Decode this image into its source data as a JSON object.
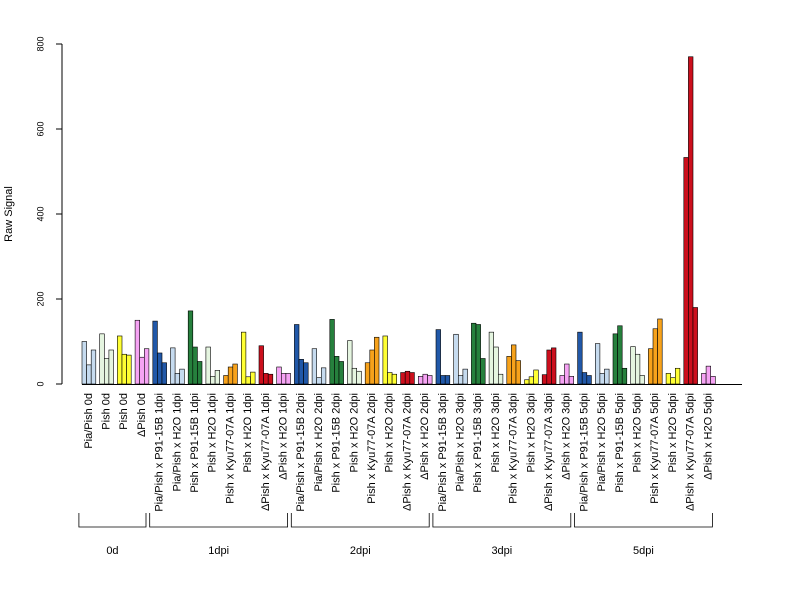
{
  "chart_data": {
    "type": "bar",
    "title": "",
    "xlabel": "",
    "ylabel": "Raw Signal",
    "ylim": [
      0,
      800
    ],
    "yticks": [
      0,
      200,
      400,
      600,
      800
    ],
    "grid": false,
    "legend": "none",
    "colors": {
      "lightblue": "#c6dbef",
      "lightgreen": "#e5f5e0",
      "yellow": "#ffff33",
      "pink": "#f6a3f4",
      "darkblue": "#2158a8",
      "darkgreen": "#26803d",
      "orange": "#f7a21b",
      "red": "#cc0f1d",
      "stroke": "#000000"
    },
    "categories": [
      {
        "label": "Pia/Pish 0d",
        "color": "lightblue",
        "values": [
          100,
          45,
          80
        ]
      },
      {
        "label": "Pish 0d",
        "color": "lightgreen",
        "values": [
          118,
          60,
          80
        ]
      },
      {
        "label": "Pish 0d",
        "color": "yellow",
        "values": [
          113,
          70,
          68
        ]
      },
      {
        "label": "ΔPish 0d",
        "color": "pink",
        "values": [
          150,
          63,
          83
        ]
      },
      {
        "label": "Pia/Pish x P91-15B 1dpi",
        "color": "darkblue",
        "values": [
          148,
          73,
          50
        ]
      },
      {
        "label": "Pia/Pish x H2O 1dpi",
        "color": "lightblue",
        "values": [
          85,
          25,
          35
        ]
      },
      {
        "label": "Pish x P91-15B 1dpi",
        "color": "darkgreen",
        "values": [
          172,
          87,
          53
        ]
      },
      {
        "label": "Pish x H2O 1dpi",
        "color": "lightgreen",
        "values": [
          87,
          18,
          32
        ]
      },
      {
        "label": "Pish x Kyu77-07A 1dpi",
        "color": "orange",
        "values": [
          20,
          40,
          47
        ]
      },
      {
        "label": "Pish x H2O 1dpi",
        "color": "yellow",
        "values": [
          122,
          17,
          28
        ]
      },
      {
        "label": "ΔPish x Kyu77-07A 1dpi",
        "color": "red",
        "values": [
          90,
          25,
          23
        ]
      },
      {
        "label": "ΔPish x H2O 1dpi",
        "color": "pink",
        "values": [
          40,
          25,
          25
        ]
      },
      {
        "label": "Pia/Pish x P91-15B 2dpi",
        "color": "darkblue",
        "values": [
          140,
          58,
          50
        ]
      },
      {
        "label": "Pia/Pish x H2O 2dpi",
        "color": "lightblue",
        "values": [
          83,
          15,
          38
        ]
      },
      {
        "label": "Pish x P91-15B 2dpi",
        "color": "darkgreen",
        "values": [
          152,
          65,
          53
        ]
      },
      {
        "label": "Pish x H2O 2dpi",
        "color": "lightgreen",
        "values": [
          102,
          37,
          30
        ]
      },
      {
        "label": "Pish x Kyu77-07A 2dpi",
        "color": "orange",
        "values": [
          50,
          80,
          110
        ]
      },
      {
        "label": "Pish x H2O 2dpi",
        "color": "yellow",
        "values": [
          113,
          27,
          23
        ]
      },
      {
        "label": "ΔPish x Kyu77-07A 2dpi",
        "color": "red",
        "values": [
          27,
          30,
          27
        ]
      },
      {
        "label": "ΔPish x H2O 2dpi",
        "color": "pink",
        "values": [
          18,
          23,
          20
        ]
      },
      {
        "label": "Pia/Pish x P91-15B 3dpi",
        "color": "darkblue",
        "values": [
          128,
          20,
          20
        ]
      },
      {
        "label": "Pia/Pish x H2O 3dpi",
        "color": "lightblue",
        "values": [
          117,
          20,
          35
        ]
      },
      {
        "label": "Pish x P91-15B 3dpi",
        "color": "darkgreen",
        "values": [
          143,
          140,
          60
        ]
      },
      {
        "label": "Pish x H2O 3dpi",
        "color": "lightgreen",
        "values": [
          122,
          87,
          23
        ]
      },
      {
        "label": "Pish x Kyu77-07A 3dpi",
        "color": "orange",
        "values": [
          65,
          92,
          55
        ]
      },
      {
        "label": "Pish x H2O 3dpi",
        "color": "yellow",
        "values": [
          10,
          17,
          33
        ]
      },
      {
        "label": "ΔPish x Kyu77-07A 3dpi",
        "color": "red",
        "values": [
          22,
          80,
          85
        ]
      },
      {
        "label": "ΔPish x H2O 3dpi",
        "color": "pink",
        "values": [
          20,
          47,
          18
        ]
      },
      {
        "label": "Pia/Pish x P91-15B 5dpi",
        "color": "darkblue",
        "values": [
          122,
          27,
          20
        ]
      },
      {
        "label": "Pia/Pish x H2O 5dpi",
        "color": "lightblue",
        "values": [
          95,
          25,
          35
        ]
      },
      {
        "label": "Pish x P91-15B 5dpi",
        "color": "darkgreen",
        "values": [
          118,
          137,
          37
        ]
      },
      {
        "label": "Pish x H2O 5dpi",
        "color": "lightgreen",
        "values": [
          88,
          70,
          20
        ]
      },
      {
        "label": "Pish x Kyu77-07A 5dpi",
        "color": "orange",
        "values": [
          83,
          130,
          153
        ]
      },
      {
        "label": "Pish x H2O 5dpi",
        "color": "yellow",
        "values": [
          25,
          15,
          37
        ]
      },
      {
        "label": "ΔPish x Kyu77-07A 5dpi",
        "color": "red",
        "values": [
          533,
          770,
          180
        ]
      },
      {
        "label": "ΔPish x H2O 5dpi",
        "color": "pink",
        "values": [
          25,
          42,
          18
        ]
      }
    ],
    "groups": [
      {
        "label": "0d",
        "from": 0,
        "to": 3
      },
      {
        "label": "1dpi",
        "from": 4,
        "to": 11
      },
      {
        "label": "2dpi",
        "from": 12,
        "to": 19
      },
      {
        "label": "3dpi",
        "from": 20,
        "to": 27
      },
      {
        "label": "5dpi",
        "from": 28,
        "to": 35
      }
    ]
  }
}
